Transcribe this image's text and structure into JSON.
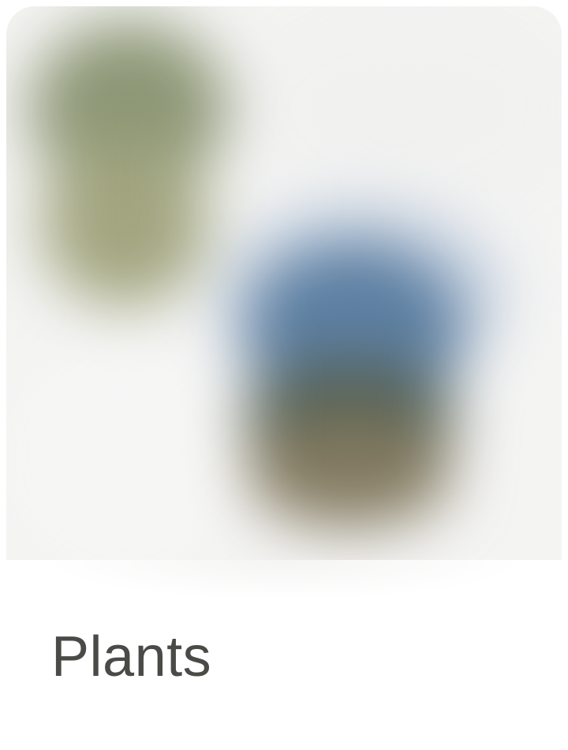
{
  "category": {
    "title": "Plants",
    "thumbnail_icon": "plant-pots-thumbnail"
  },
  "colors": {
    "background": "#f4f4f3",
    "plant_foliage": "#8d9776",
    "plant_stem": "#a2a57f",
    "pot_blue": "#5d7fa2",
    "pot_dark": "#556052",
    "soil_brown": "#837a60",
    "label_text": "#4a4b47"
  }
}
